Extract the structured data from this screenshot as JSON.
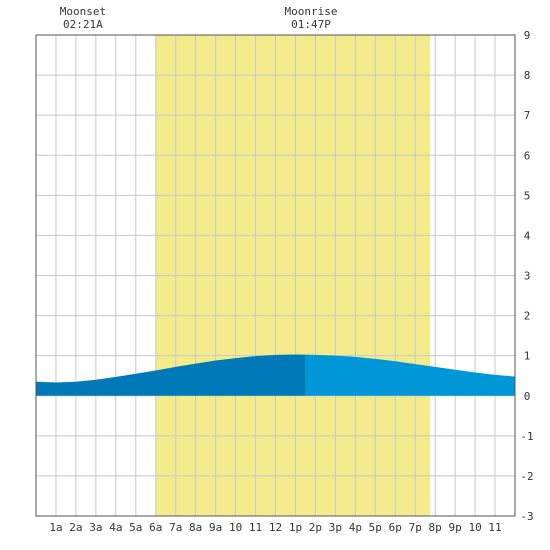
{
  "chart_data": {
    "type": "area",
    "title": "",
    "xlabel": "",
    "ylabel": "",
    "x_tick_labels": [
      "1a",
      "2a",
      "3a",
      "4a",
      "5a",
      "6a",
      "7a",
      "8a",
      "9a",
      "10",
      "11",
      "12",
      "1p",
      "2p",
      "3p",
      "4p",
      "5p",
      "6p",
      "7p",
      "8p",
      "9p",
      "10",
      "11"
    ],
    "x_tick_hours": [
      1,
      2,
      3,
      4,
      5,
      6,
      7,
      8,
      9,
      10,
      11,
      12,
      13,
      14,
      15,
      16,
      17,
      18,
      19,
      20,
      21,
      22,
      23
    ],
    "xlim": [
      0,
      24
    ],
    "ylim": [
      -3,
      9
    ],
    "y_ticks": [
      -3,
      -2,
      -1,
      0,
      1,
      2,
      3,
      4,
      5,
      6,
      7,
      8,
      9
    ],
    "grid": true,
    "daylight": {
      "start_hour": 6.0,
      "end_hour": 19.75,
      "color": "#f3ec8c"
    },
    "series": [
      {
        "x": [
          0,
          1,
          2,
          3,
          4,
          5,
          6,
          7,
          8,
          9,
          10,
          11,
          12,
          13,
          14,
          15,
          16,
          17,
          18,
          19,
          20,
          21,
          22,
          23,
          24
        ],
        "values": [
          0.35,
          0.33,
          0.35,
          0.4,
          0.47,
          0.55,
          0.63,
          0.72,
          0.8,
          0.88,
          0.94,
          0.99,
          1.02,
          1.03,
          1.02,
          1.0,
          0.97,
          0.92,
          0.86,
          0.79,
          0.72,
          0.65,
          0.58,
          0.52,
          0.48
        ]
      }
    ],
    "current_time_split_hour": 13.5,
    "colors": {
      "past": "#0079b8",
      "future": "#0097d9",
      "grid": "#c8c8c8"
    },
    "annotations": [
      {
        "label": "Moonset",
        "time": "02:21A",
        "hour": 2.35
      },
      {
        "label": "Moonrise",
        "time": "01:47P",
        "hour": 13.78
      }
    ]
  }
}
